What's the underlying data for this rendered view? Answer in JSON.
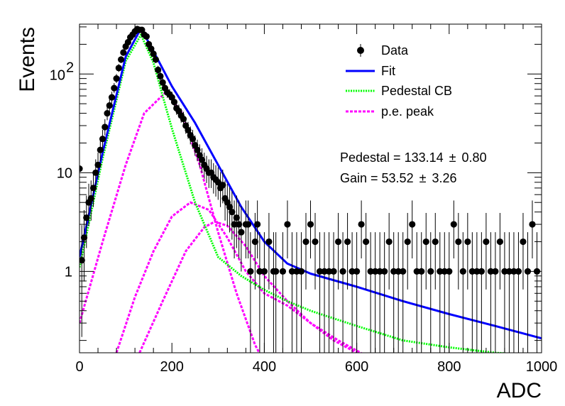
{
  "chart_data": {
    "type": "scatter",
    "xlabel": "ADC",
    "ylabel": "Events",
    "xlim": [
      0,
      1000
    ],
    "ylim": [
      0.15,
      320
    ],
    "yscale": "log",
    "grid": false,
    "legend_position": "top-right",
    "x_ticks": [
      {
        "value": 0,
        "label": "0"
      },
      {
        "value": 200,
        "label": "200"
      },
      {
        "value": 400,
        "label": "400"
      },
      {
        "value": 600,
        "label": "600"
      },
      {
        "value": 800,
        "label": "800"
      },
      {
        "value": 1000,
        "label": "1000"
      }
    ],
    "y_ticks": [
      {
        "value": 1,
        "label": "1"
      },
      {
        "value": 10,
        "label": "10"
      },
      {
        "value": 100,
        "label": "10",
        "exponent": "2"
      }
    ],
    "legend": [
      {
        "label": "Data",
        "style": "marker",
        "color": "#000000"
      },
      {
        "label": "Fit",
        "style": "solid",
        "color": "#0000ff"
      },
      {
        "label": "Pedestal CB",
        "style": "dotted",
        "color": "#00ff00"
      },
      {
        "label": "p.e. peak",
        "style": "dashed",
        "color": "#ff00ff"
      }
    ],
    "annotations": [
      {
        "text": "Pedestal = 133.14",
        "pm": "±",
        "value": "0.80"
      },
      {
        "text": "Gain = 53.52",
        "pm": "±",
        "value": "3.26"
      }
    ],
    "data_points": {
      "x": [
        0,
        5,
        10,
        15,
        20,
        25,
        30,
        35,
        40,
        45,
        50,
        55,
        60,
        65,
        70,
        75,
        80,
        85,
        90,
        95,
        100,
        105,
        110,
        115,
        120,
        125,
        130,
        135,
        140,
        145,
        150,
        155,
        160,
        165,
        170,
        175,
        180,
        185,
        190,
        195,
        200,
        205,
        210,
        215,
        220,
        225,
        230,
        235,
        240,
        245,
        250,
        255,
        260,
        265,
        270,
        275,
        280,
        285,
        290,
        295,
        300,
        305,
        310,
        315,
        320,
        325,
        330,
        335,
        340,
        345,
        350,
        360,
        365,
        370,
        380,
        385,
        390,
        400,
        410,
        420,
        425,
        440,
        450,
        460,
        470,
        480,
        490,
        500,
        510,
        520,
        530,
        540,
        550,
        560,
        570,
        580,
        590,
        600,
        610,
        620,
        630,
        640,
        650,
        660,
        670,
        680,
        690,
        700,
        710,
        720,
        730,
        740,
        750,
        760,
        770,
        780,
        790,
        800,
        810,
        820,
        830,
        840,
        850,
        860,
        870,
        880,
        890,
        900,
        910,
        920,
        930,
        940,
        950,
        960,
        970,
        980,
        990
      ],
      "y": [
        11,
        1.3,
        2.2,
        3.5,
        5,
        5.5,
        7,
        10,
        12,
        17,
        22,
        29,
        40,
        48,
        58,
        72,
        90,
        115,
        140,
        165,
        190,
        210,
        235,
        250,
        270,
        285,
        280,
        280,
        250,
        240,
        200,
        180,
        160,
        140,
        110,
        95,
        82,
        72,
        65,
        62,
        58,
        52,
        45,
        42,
        38,
        35,
        30,
        27,
        24,
        22,
        19,
        17,
        15,
        13.5,
        12,
        11,
        10,
        10,
        9,
        8.5,
        8,
        7,
        7.5,
        5.5,
        5,
        4.5,
        4,
        3,
        3.5,
        3,
        2.5,
        3,
        3,
        1,
        2,
        3,
        1,
        1,
        2,
        1,
        1,
        1,
        3,
        1,
        1,
        1,
        2,
        3,
        2,
        1,
        1,
        1,
        1,
        2,
        1,
        2,
        1,
        1,
        3,
        2,
        1,
        1,
        1,
        1,
        2,
        1,
        1,
        1,
        2,
        3,
        1,
        1,
        2,
        1,
        2,
        1,
        1,
        1,
        3,
        2,
        1,
        2,
        1,
        1,
        1,
        2,
        1,
        1,
        2,
        1,
        1,
        1,
        1,
        2,
        1,
        3,
        1
      ],
      "y_err_low_fraction": 0.4
    },
    "curves": {
      "fit": {
        "name": "Fit",
        "color": "#0000ff",
        "style": "solid",
        "x": [
          0,
          50,
          100,
          133,
          160,
          200,
          250,
          300,
          350,
          400,
          450,
          500,
          600,
          700,
          800,
          900,
          1000
        ],
        "y": [
          1.4,
          16,
          150,
          290,
          170,
          75,
          32,
          12,
          4.5,
          2,
          1.2,
          0.95,
          0.7,
          0.5,
          0.37,
          0.28,
          0.21
        ]
      },
      "pedestal_cb": {
        "name": "Pedestal CB",
        "color": "#00ff00",
        "style": "dotted",
        "x": [
          0,
          50,
          100,
          133,
          160,
          180,
          200,
          250,
          300,
          350,
          400,
          450,
          500,
          600,
          700,
          800,
          900,
          1000
        ],
        "y": [
          1.1,
          14,
          135,
          250,
          130,
          60,
          28,
          5,
          1.4,
          0.9,
          0.65,
          0.5,
          0.4,
          0.28,
          0.2,
          0.17,
          0.15,
          0.14
        ]
      },
      "pe_peaks": [
        {
          "name": "p.e. peak",
          "color": "#ff00ff",
          "style": "dashed",
          "x": [
            0,
            50,
            100,
            140,
            186,
            220,
            260,
            300,
            340,
            380,
            420
          ],
          "y": [
            0.3,
            2,
            12,
            40,
            65,
            42,
            12,
            2.5,
            0.6,
            0.18,
            0.08
          ]
        },
        {
          "name": "p.e. peak",
          "color": "#ff00ff",
          "style": "dashed",
          "x": [
            80,
            120,
            160,
            200,
            240,
            280,
            320,
            360,
            400,
            450,
            500,
            560,
            620
          ],
          "y": [
            0.15,
            0.55,
            1.6,
            3.6,
            5,
            4.2,
            2.2,
            1,
            0.6,
            0.45,
            0.3,
            0.2,
            0.14
          ]
        },
        {
          "name": "p.e. peak",
          "color": "#ff00ff",
          "style": "dashed",
          "x": [
            130,
            180,
            230,
            270,
            293,
            320,
            360,
            400,
            450,
            500,
            550,
            600
          ],
          "y": [
            0.15,
            0.5,
            1.6,
            2.8,
            3.2,
            2.9,
            1.8,
            0.9,
            0.5,
            0.3,
            0.2,
            0.15
          ]
        }
      ]
    }
  }
}
